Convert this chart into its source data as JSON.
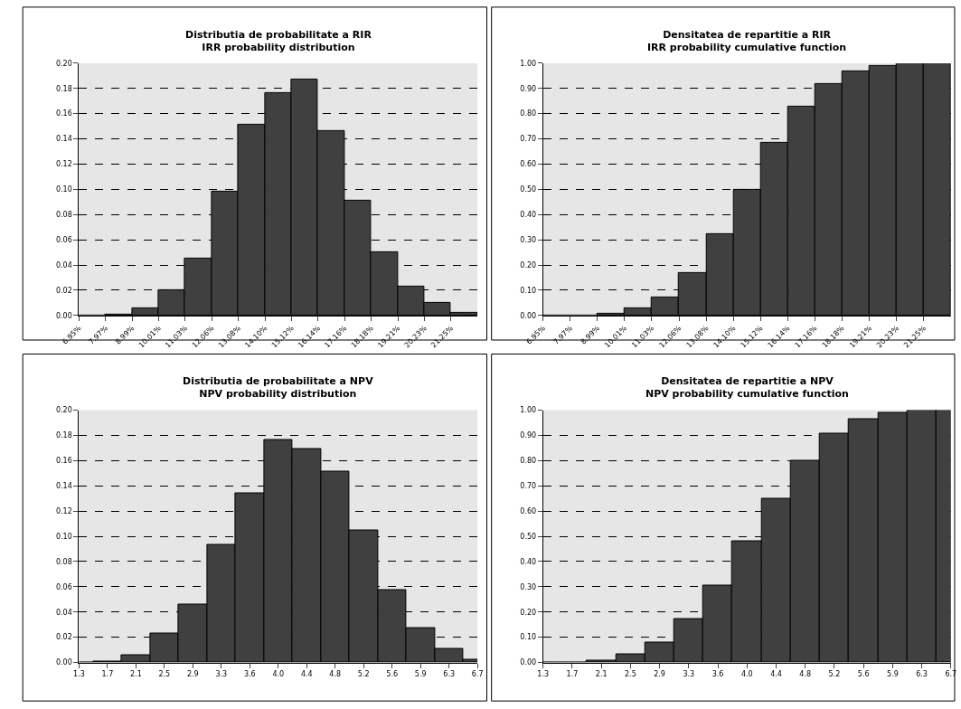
{
  "chart_data": [
    {
      "type": "histogram",
      "title": "Distributia de probabilitate a RIR\nIRR probability distribution",
      "bins": [
        6.95,
        7.97,
        8.99,
        10.01,
        11.03,
        12.06,
        13.08,
        14.1,
        15.12,
        16.14,
        17.16,
        18.18,
        19.21,
        20.23,
        21.25,
        22.27
      ],
      "values": [
        0,
        0.001,
        0.006,
        0.02,
        0.045,
        0.098,
        0.151,
        0.176,
        0.187,
        0.146,
        0.091,
        0.05,
        0.023,
        0.01,
        0.002
      ],
      "color": "#404040",
      "xlim": [
        6.95,
        22.27
      ],
      "xticks": [
        {
          "value": 6.95,
          "label": "6.95%"
        },
        {
          "value": 7.97,
          "label": "7.97%"
        },
        {
          "value": 8.99,
          "label": "8.99%"
        },
        {
          "value": 10.01,
          "label": "10.01%"
        },
        {
          "value": 11.03,
          "label": "11.03%"
        },
        {
          "value": 12.06,
          "label": "12.06%"
        },
        {
          "value": 13.08,
          "label": "13.08%"
        },
        {
          "value": 14.1,
          "label": "14.10%"
        },
        {
          "value": 15.12,
          "label": "15.12%"
        },
        {
          "value": 16.14,
          "label": "16.14%"
        },
        {
          "value": 17.16,
          "label": "17.16%"
        },
        {
          "value": 18.18,
          "label": "18.18%"
        },
        {
          "value": 19.21,
          "label": "19.21%"
        },
        {
          "value": 20.23,
          "label": "20.23%"
        },
        {
          "value": 21.25,
          "label": "21.25%"
        }
      ],
      "ylim": [
        0,
        0.2
      ],
      "yticks": [
        {
          "value": 0,
          "label": "0.00"
        },
        {
          "value": 0.02,
          "label": "0.02"
        },
        {
          "value": 0.04,
          "label": "0.04"
        },
        {
          "value": 0.06,
          "label": "0.06"
        },
        {
          "value": 0.08,
          "label": "0.08"
        },
        {
          "value": 0.1,
          "label": "0.10"
        },
        {
          "value": 0.12,
          "label": "0.12"
        },
        {
          "value": 0.14,
          "label": "0.14"
        },
        {
          "value": 0.16,
          "label": "0.16"
        },
        {
          "value": 0.18,
          "label": "0.18"
        },
        {
          "value": 0.2,
          "label": "0.20"
        }
      ],
      "grid": "y"
    },
    {
      "type": "histogram",
      "title": "Densitatea de repartitie a RIR\nIRR probability cumulative function",
      "bins": [
        6.95,
        7.97,
        8.99,
        10.01,
        11.03,
        12.06,
        13.08,
        14.1,
        15.12,
        16.14,
        17.16,
        18.18,
        19.21,
        20.23,
        21.25,
        22.27
      ],
      "values": [
        0,
        0,
        0.007,
        0.028,
        0.073,
        0.17,
        0.321,
        0.497,
        0.683,
        0.828,
        0.918,
        0.968,
        0.99,
        1.0,
        1.0
      ],
      "color": "#404040",
      "xlim": [
        6.95,
        22.27
      ],
      "xticks": [
        {
          "value": 6.95,
          "label": "6.95%"
        },
        {
          "value": 7.97,
          "label": "7.97%"
        },
        {
          "value": 8.99,
          "label": "8.99%"
        },
        {
          "value": 10.01,
          "label": "10.01%"
        },
        {
          "value": 11.03,
          "label": "11.03%"
        },
        {
          "value": 12.06,
          "label": "12.06%"
        },
        {
          "value": 13.08,
          "label": "13.08%"
        },
        {
          "value": 14.1,
          "label": "14.10%"
        },
        {
          "value": 15.12,
          "label": "15.12%"
        },
        {
          "value": 16.14,
          "label": "16.14%"
        },
        {
          "value": 17.16,
          "label": "17.16%"
        },
        {
          "value": 18.18,
          "label": "18.18%"
        },
        {
          "value": 19.21,
          "label": "19.21%"
        },
        {
          "value": 20.23,
          "label": "20.23%"
        },
        {
          "value": 21.25,
          "label": "21.25%"
        }
      ],
      "ylim": [
        0,
        1
      ],
      "yticks": [
        {
          "value": 0,
          "label": "0.00"
        },
        {
          "value": 0.1,
          "label": "0.10"
        },
        {
          "value": 0.2,
          "label": "0.20"
        },
        {
          "value": 0.3,
          "label": "0.30"
        },
        {
          "value": 0.4,
          "label": "0.40"
        },
        {
          "value": 0.5,
          "label": "0.50"
        },
        {
          "value": 0.6,
          "label": "0.60"
        },
        {
          "value": 0.7,
          "label": "0.70"
        },
        {
          "value": 0.8,
          "label": "0.80"
        },
        {
          "value": 0.9,
          "label": "0.90"
        },
        {
          "value": 1,
          "label": "1.00"
        }
      ],
      "grid": "y"
    },
    {
      "type": "bar",
      "title": "Distributia de probabilitate a NPV\nNPV probability distribution",
      "categories": [
        "1.3",
        "1.7",
        "2.1",
        "2.5",
        "2.9",
        "3.3",
        "3.6",
        "4.0",
        "4.4",
        "4.8",
        "5.2",
        "5.6",
        "5.9",
        "6.3",
        "6.7"
      ],
      "values": [
        0,
        0.001,
        0.006,
        0.023,
        0.046,
        0.093,
        0.134,
        0.176,
        0.169,
        0.151,
        0.105,
        0.057,
        0.027,
        0.011,
        0.002
      ],
      "color": "#404040",
      "ylim": [
        0,
        0.2
      ],
      "yticks": [
        {
          "value": 0,
          "label": "0.00"
        },
        {
          "value": 0.02,
          "label": "0.02"
        },
        {
          "value": 0.04,
          "label": "0.04"
        },
        {
          "value": 0.06,
          "label": "0.06"
        },
        {
          "value": 0.08,
          "label": "0.08"
        },
        {
          "value": 0.1,
          "label": "0.10"
        },
        {
          "value": 0.12,
          "label": "0.12"
        },
        {
          "value": 0.14,
          "label": "0.14"
        },
        {
          "value": 0.16,
          "label": "0.16"
        },
        {
          "value": 0.18,
          "label": "0.18"
        },
        {
          "value": 0.2,
          "label": "0.20"
        }
      ],
      "grid": "y"
    },
    {
      "type": "bar",
      "title": "Densitatea de repartitie a NPV\nNPV probability cumulative function",
      "categories": [
        "1.3",
        "1.7",
        "2.1",
        "2.5",
        "2.9",
        "3.3",
        "3.6",
        "4.0",
        "4.4",
        "4.8",
        "5.2",
        "5.6",
        "5.9",
        "6.3",
        "6.7"
      ],
      "values": [
        0,
        0,
        0.007,
        0.031,
        0.078,
        0.171,
        0.305,
        0.481,
        0.65,
        0.801,
        0.906,
        0.963,
        0.99,
        1.0,
        1.0
      ],
      "color": "#404040",
      "ylim": [
        0,
        1
      ],
      "yticks": [
        {
          "value": 0,
          "label": "0.00"
        },
        {
          "value": 0.1,
          "label": "0.10"
        },
        {
          "value": 0.2,
          "label": "0.20"
        },
        {
          "value": 0.3,
          "label": "0.30"
        },
        {
          "value": 0.4,
          "label": "0.40"
        },
        {
          "value": 0.5,
          "label": "0.50"
        },
        {
          "value": 0.6,
          "label": "0.60"
        },
        {
          "value": 0.7,
          "label": "0.70"
        },
        {
          "value": 0.8,
          "label": "0.80"
        },
        {
          "value": 0.9,
          "label": "0.90"
        },
        {
          "value": 1,
          "label": "1.00"
        }
      ],
      "grid": "y"
    }
  ]
}
